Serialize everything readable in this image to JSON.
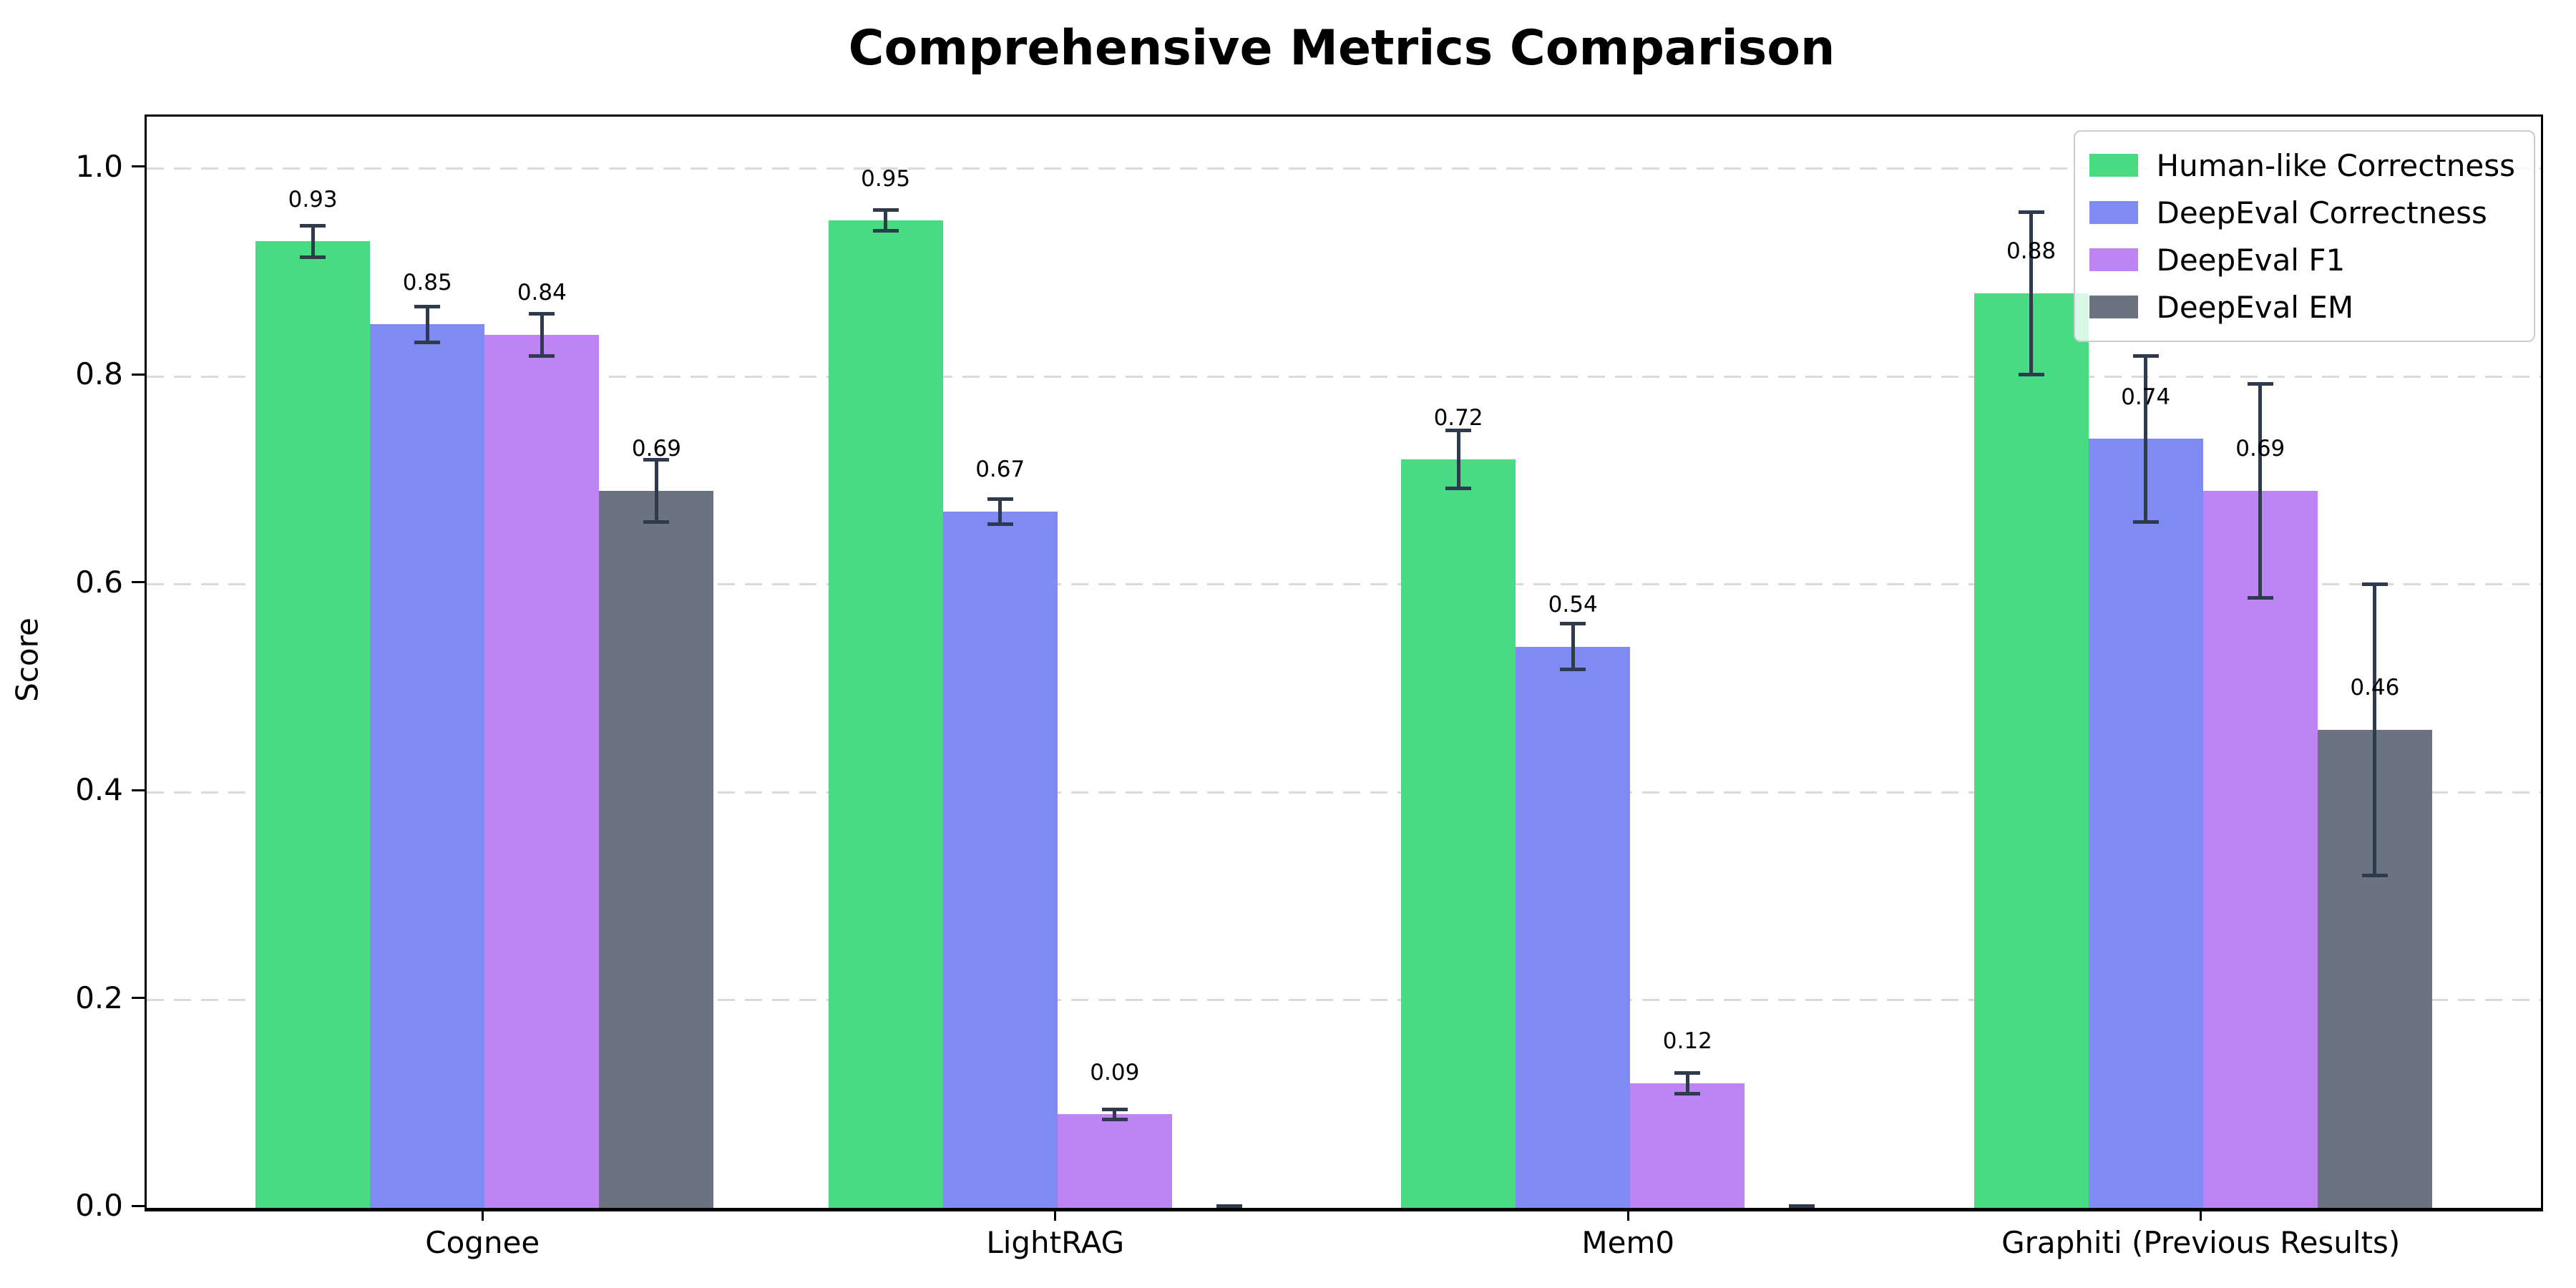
{
  "figure": {
    "background": "#ffffff"
  },
  "chart_data": {
    "type": "bar",
    "title": "Comprehensive Metrics Comparison",
    "xlabel": "",
    "ylabel": "Score",
    "categories": [
      "Cognee",
      "LightRAG",
      "Mem0",
      "Graphiti (Previous Results)"
    ],
    "series": [
      {
        "name": "Human-like Correctness",
        "color": "#49DB81",
        "values": [
          0.93,
          0.95,
          0.72,
          0.88
        ],
        "errors": [
          0.015,
          0.01,
          0.028,
          0.078
        ],
        "labels": [
          "0.93",
          "0.95",
          "0.72",
          "0.88"
        ]
      },
      {
        "name": "DeepEval Correctness",
        "color": "#7F8BF3",
        "values": [
          0.85,
          0.67,
          0.54,
          0.74
        ],
        "errors": [
          0.017,
          0.012,
          0.022,
          0.08
        ],
        "labels": [
          "0.85",
          "0.67",
          "0.54",
          "0.74"
        ]
      },
      {
        "name": "DeepEval F1",
        "color": "#BE84F4",
        "values": [
          0.84,
          0.09,
          0.12,
          0.69
        ],
        "errors": [
          0.02,
          0.005,
          0.01,
          0.103
        ],
        "labels": [
          "0.84",
          "0.09",
          "0.12",
          "0.69"
        ]
      },
      {
        "name": "DeepEval EM",
        "color": "#6B7280",
        "values": [
          0.69,
          0.0,
          0.0,
          0.46
        ],
        "errors": [
          0.03,
          0.002,
          0.002,
          0.14
        ],
        "labels": [
          "0.69",
          "",
          "",
          "0.46"
        ]
      }
    ],
    "ylim": [
      0,
      1.05
    ],
    "yticks": [
      0.0,
      0.2,
      0.4,
      0.6,
      0.8,
      1.0
    ],
    "ytick_labels": [
      "0.0",
      "0.2",
      "0.4",
      "0.6",
      "0.8",
      "1.0"
    ],
    "grid": "horizontal-dashed",
    "grid_color": "#dadada",
    "legend_position": "upper-right",
    "bar_width": 0.2,
    "group_offsets": [
      -0.3,
      -0.1,
      0.1,
      0.3
    ],
    "error_bar_color": "#2E3B4D"
  }
}
